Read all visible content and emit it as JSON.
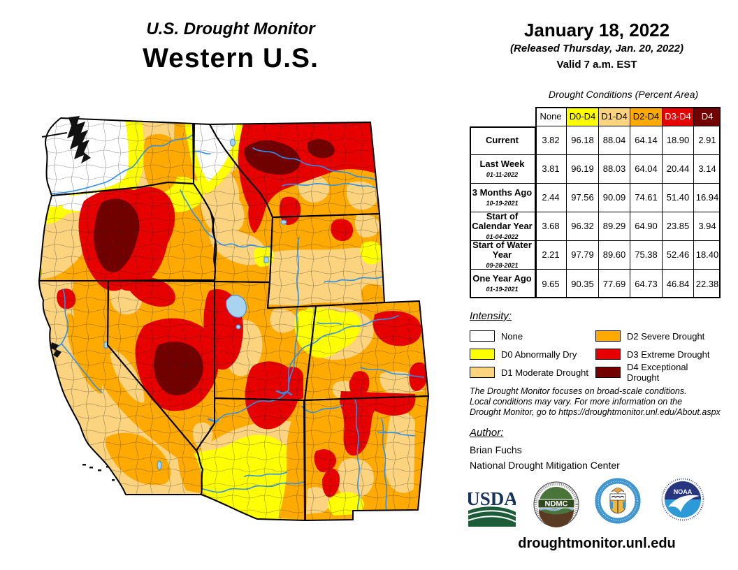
{
  "title": {
    "line1": "U.S. Drought Monitor",
    "line2": "Western U.S."
  },
  "header": {
    "date": "January 18, 2022",
    "released": "(Released Thursday, Jan. 20, 2022)",
    "valid": "Valid 7 a.m. EST"
  },
  "table": {
    "caption": "Drought Conditions (Percent Area)",
    "columns": [
      "None",
      "D0-D4",
      "D1-D4",
      "D2-D4",
      "D3-D4",
      "D4"
    ],
    "header_bg": [
      "#FFFFFF",
      "#FFFF00",
      "#FCD37F",
      "#FFAA00",
      "#E60000",
      "#730000"
    ],
    "header_fg": [
      "#000000",
      "#000000",
      "#000000",
      "#000000",
      "#FFFFFF",
      "#FFFFFF"
    ],
    "rows": [
      {
        "label": "Current",
        "date": "",
        "values": [
          "3.82",
          "96.18",
          "88.04",
          "64.14",
          "18.90",
          "2.91"
        ]
      },
      {
        "label": "Last Week",
        "date": "01-11-2022",
        "values": [
          "3.81",
          "96.19",
          "88.03",
          "64.04",
          "20.44",
          "3.14"
        ]
      },
      {
        "label": "3 Months Ago",
        "date": "10-19-2021",
        "values": [
          "2.44",
          "97.56",
          "90.09",
          "74.61",
          "51.40",
          "16.94"
        ]
      },
      {
        "label": "Start of Calendar Year",
        "date": "01-04-2022",
        "values": [
          "3.68",
          "96.32",
          "89.29",
          "64.90",
          "23.85",
          "3.94"
        ]
      },
      {
        "label": "Start of Water Year",
        "date": "09-28-2021",
        "values": [
          "2.21",
          "97.79",
          "89.60",
          "75.38",
          "52.46",
          "18.40"
        ]
      },
      {
        "label": "One Year Ago",
        "date": "01-19-2021",
        "values": [
          "9.65",
          "90.35",
          "77.69",
          "64.73",
          "46.84",
          "22.38"
        ]
      }
    ]
  },
  "legend": {
    "heading": "Intensity:",
    "left_column": [
      {
        "label": "None",
        "color": "#FFFFFF"
      },
      {
        "label": "D0 Abnormally Dry",
        "color": "#FFFF00"
      },
      {
        "label": "D1 Moderate Drought",
        "color": "#FCD37F"
      }
    ],
    "right_column": [
      {
        "label": "D2 Severe Drought",
        "color": "#FFAA00"
      },
      {
        "label": "D3 Extreme Drought",
        "color": "#E60000"
      },
      {
        "label": "D4 Exceptional Drought",
        "color": "#730000"
      }
    ]
  },
  "disclaimer": "The Drought Monitor focuses on broad-scale conditions.\nLocal conditions may vary. For more information on the\nDrought Monitor, go to https://droughtmonitor.unl.edu/About.aspx",
  "author": {
    "heading": "Author:",
    "name": "Brian Fuchs",
    "org": "National Drought Mitigation Center"
  },
  "logos": {
    "usda": "USDA",
    "ndmc": "NDMC",
    "noaa": "NOAA"
  },
  "website": "droughtmonitor.unl.edu",
  "palette": {
    "none": "#FFFFFF",
    "d0": "#FFFF00",
    "d1": "#FCD37F",
    "d2": "#FFAA00",
    "d3": "#E60000",
    "d4": "#730000",
    "river": "#2F8FE8",
    "lake": "#A8D4F0"
  }
}
